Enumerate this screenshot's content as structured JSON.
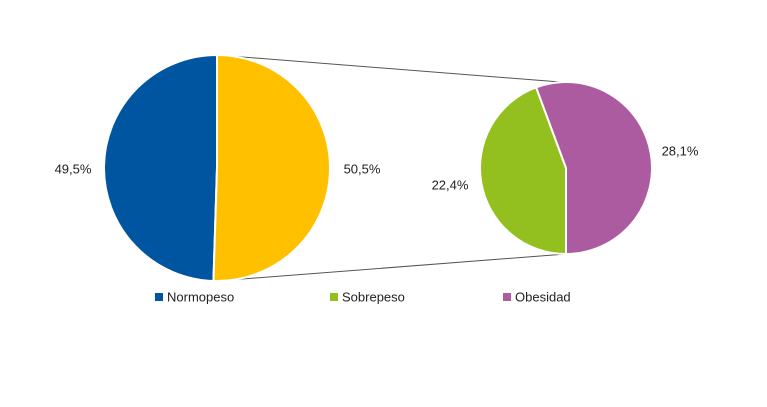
{
  "chart_data": {
    "type": "pie",
    "primary": {
      "categories": [
        "Normopeso",
        null
      ],
      "values": [
        49.5,
        50.5
      ],
      "value_labels": [
        "49,5%",
        "50,5%"
      ],
      "colors": [
        "#0055a0",
        "#ffc000"
      ]
    },
    "secondary": {
      "categories": [
        "Sobrepeso",
        "Obesidad"
      ],
      "values": [
        22.4,
        28.1
      ],
      "value_labels": [
        "22,4%",
        "28,1%"
      ],
      "colors": [
        "#93c01f",
        "#ad5ba0"
      ]
    }
  }
}
